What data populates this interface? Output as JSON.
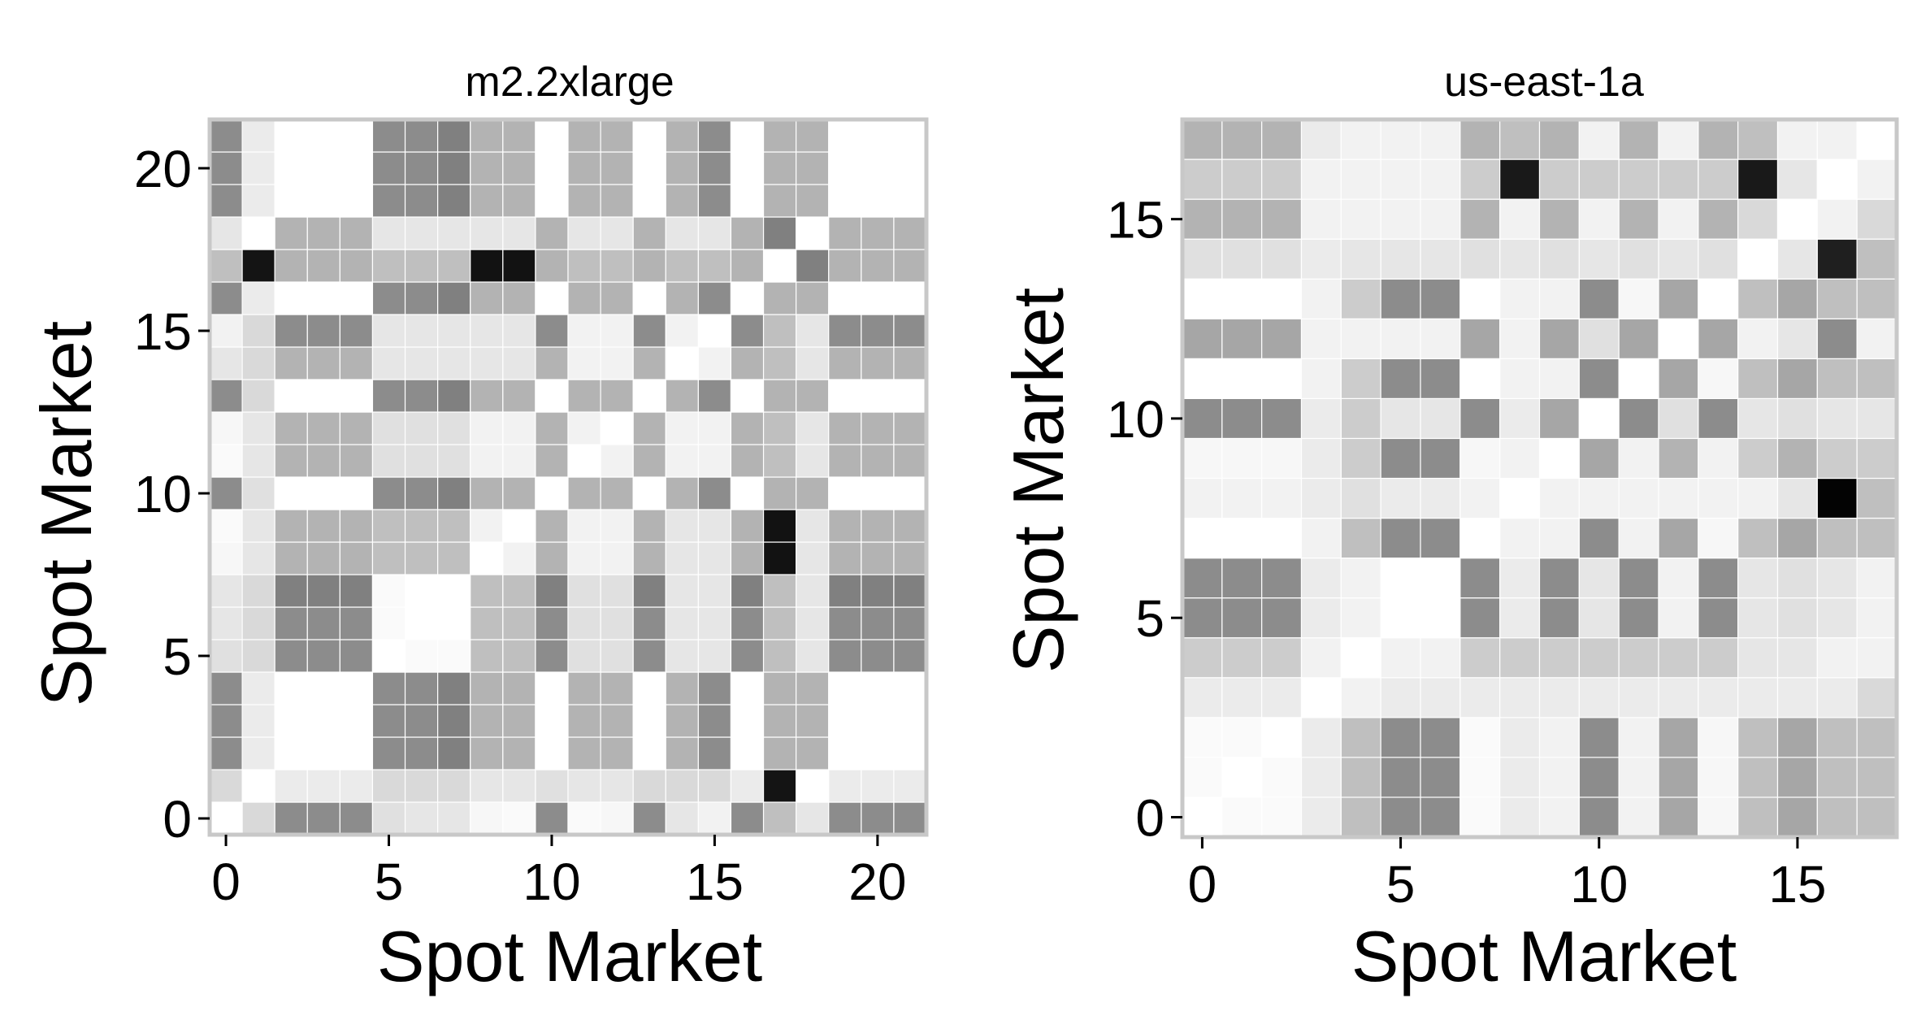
{
  "colors": {
    "background": "#ffffff",
    "panel_border": "#c8c8c8",
    "tile_border": "#ffffff",
    "low": "#ffffff",
    "high": "#000000"
  },
  "chart_data": [
    {
      "type": "heatmap",
      "title": "m2.2xlarge",
      "xlabel": "Spot Market",
      "ylabel": "Spot Market",
      "n": 22,
      "xlim": [
        0,
        21
      ],
      "ylim": [
        0,
        21
      ],
      "xticks": [
        0,
        5,
        10,
        15,
        20
      ],
      "yticks": [
        0,
        5,
        10,
        15,
        20
      ],
      "value_range": [
        0,
        1
      ],
      "grid": false,
      "legend": "none",
      "rows": [
        [
          0.0,
          0.15,
          0.45,
          0.45,
          0.45,
          0.12,
          0.1,
          0.1,
          0.03,
          0.02,
          0.45,
          0.02,
          0.03,
          0.45,
          0.1,
          0.05,
          0.45,
          0.25,
          0.1,
          0.45,
          0.45,
          0.45
        ],
        [
          0.15,
          0.0,
          0.08,
          0.08,
          0.08,
          0.15,
          0.15,
          0.15,
          0.1,
          0.1,
          0.12,
          0.1,
          0.1,
          0.15,
          0.15,
          0.15,
          0.08,
          0.92,
          0.0,
          0.08,
          0.08,
          0.08
        ],
        [
          0.45,
          0.08,
          0.0,
          0.0,
          0.0,
          0.45,
          0.45,
          0.5,
          0.3,
          0.3,
          0.0,
          0.3,
          0.3,
          0.0,
          0.3,
          0.45,
          0.0,
          0.3,
          0.3,
          0.0,
          0.0,
          0.0
        ],
        [
          0.45,
          0.08,
          0.0,
          0.0,
          0.0,
          0.45,
          0.45,
          0.5,
          0.3,
          0.3,
          0.0,
          0.3,
          0.3,
          0.0,
          0.3,
          0.45,
          0.0,
          0.3,
          0.3,
          0.0,
          0.0,
          0.0
        ],
        [
          0.45,
          0.08,
          0.0,
          0.0,
          0.0,
          0.45,
          0.45,
          0.5,
          0.3,
          0.3,
          0.0,
          0.3,
          0.3,
          0.0,
          0.3,
          0.45,
          0.0,
          0.3,
          0.3,
          0.0,
          0.0,
          0.0
        ],
        [
          0.12,
          0.15,
          0.45,
          0.45,
          0.45,
          0.0,
          0.02,
          0.02,
          0.25,
          0.25,
          0.45,
          0.12,
          0.12,
          0.45,
          0.1,
          0.1,
          0.45,
          0.25,
          0.1,
          0.45,
          0.45,
          0.45
        ],
        [
          0.1,
          0.15,
          0.45,
          0.45,
          0.45,
          0.02,
          0.0,
          0.0,
          0.25,
          0.25,
          0.45,
          0.12,
          0.12,
          0.45,
          0.1,
          0.1,
          0.45,
          0.25,
          0.1,
          0.45,
          0.45,
          0.45
        ],
        [
          0.1,
          0.15,
          0.5,
          0.5,
          0.5,
          0.02,
          0.0,
          0.0,
          0.25,
          0.25,
          0.5,
          0.12,
          0.12,
          0.5,
          0.1,
          0.1,
          0.5,
          0.25,
          0.1,
          0.5,
          0.5,
          0.5
        ],
        [
          0.03,
          0.1,
          0.3,
          0.3,
          0.3,
          0.25,
          0.25,
          0.25,
          0.0,
          0.05,
          0.3,
          0.05,
          0.05,
          0.3,
          0.1,
          0.1,
          0.3,
          0.93,
          0.1,
          0.3,
          0.3,
          0.3
        ],
        [
          0.02,
          0.1,
          0.3,
          0.3,
          0.3,
          0.25,
          0.25,
          0.25,
          0.05,
          0.0,
          0.3,
          0.05,
          0.05,
          0.3,
          0.1,
          0.1,
          0.3,
          0.93,
          0.1,
          0.3,
          0.3,
          0.3
        ],
        [
          0.45,
          0.12,
          0.0,
          0.0,
          0.0,
          0.45,
          0.45,
          0.5,
          0.3,
          0.3,
          0.0,
          0.3,
          0.3,
          0.0,
          0.3,
          0.45,
          0.0,
          0.3,
          0.3,
          0.0,
          0.0,
          0.0
        ],
        [
          0.02,
          0.1,
          0.3,
          0.3,
          0.3,
          0.12,
          0.12,
          0.12,
          0.05,
          0.05,
          0.3,
          0.0,
          0.05,
          0.3,
          0.05,
          0.05,
          0.3,
          0.25,
          0.1,
          0.3,
          0.3,
          0.3
        ],
        [
          0.03,
          0.1,
          0.3,
          0.3,
          0.3,
          0.12,
          0.12,
          0.12,
          0.05,
          0.05,
          0.3,
          0.05,
          0.0,
          0.3,
          0.05,
          0.05,
          0.3,
          0.25,
          0.1,
          0.3,
          0.3,
          0.3
        ],
        [
          0.45,
          0.15,
          0.0,
          0.0,
          0.0,
          0.45,
          0.45,
          0.5,
          0.3,
          0.3,
          0.0,
          0.3,
          0.3,
          0.0,
          0.3,
          0.45,
          0.0,
          0.3,
          0.3,
          0.0,
          0.0,
          0.0
        ],
        [
          0.1,
          0.15,
          0.3,
          0.3,
          0.3,
          0.1,
          0.1,
          0.1,
          0.1,
          0.1,
          0.3,
          0.05,
          0.05,
          0.3,
          0.0,
          0.05,
          0.3,
          0.25,
          0.1,
          0.3,
          0.3,
          0.3
        ],
        [
          0.05,
          0.15,
          0.45,
          0.45,
          0.45,
          0.1,
          0.1,
          0.1,
          0.1,
          0.1,
          0.45,
          0.05,
          0.05,
          0.45,
          0.05,
          0.0,
          0.45,
          0.25,
          0.1,
          0.45,
          0.45,
          0.45
        ],
        [
          0.45,
          0.08,
          0.0,
          0.0,
          0.0,
          0.45,
          0.45,
          0.5,
          0.3,
          0.3,
          0.0,
          0.3,
          0.3,
          0.0,
          0.3,
          0.45,
          0.0,
          0.3,
          0.3,
          0.0,
          0.0,
          0.0
        ],
        [
          0.25,
          0.92,
          0.3,
          0.3,
          0.3,
          0.25,
          0.25,
          0.25,
          0.93,
          0.93,
          0.3,
          0.25,
          0.25,
          0.3,
          0.25,
          0.25,
          0.3,
          0.0,
          0.5,
          0.3,
          0.3,
          0.3
        ],
        [
          0.1,
          0.0,
          0.3,
          0.3,
          0.3,
          0.1,
          0.1,
          0.1,
          0.1,
          0.1,
          0.3,
          0.1,
          0.1,
          0.3,
          0.1,
          0.1,
          0.3,
          0.5,
          0.0,
          0.3,
          0.3,
          0.3
        ],
        [
          0.45,
          0.08,
          0.0,
          0.0,
          0.0,
          0.45,
          0.45,
          0.5,
          0.3,
          0.3,
          0.0,
          0.3,
          0.3,
          0.0,
          0.3,
          0.45,
          0.0,
          0.3,
          0.3,
          0.0,
          0.0,
          0.0
        ],
        [
          0.45,
          0.08,
          0.0,
          0.0,
          0.0,
          0.45,
          0.45,
          0.5,
          0.3,
          0.3,
          0.0,
          0.3,
          0.3,
          0.0,
          0.3,
          0.45,
          0.0,
          0.3,
          0.3,
          0.0,
          0.0,
          0.0
        ],
        [
          0.45,
          0.08,
          0.0,
          0.0,
          0.0,
          0.45,
          0.45,
          0.5,
          0.3,
          0.3,
          0.0,
          0.3,
          0.3,
          0.0,
          0.3,
          0.45,
          0.0,
          0.3,
          0.3,
          0.0,
          0.0,
          0.0
        ]
      ]
    },
    {
      "type": "heatmap",
      "title": "us-east-1a",
      "xlabel": "Spot Market",
      "ylabel": "Spot Market",
      "n": 18,
      "xlim": [
        0,
        17
      ],
      "ylim": [
        0,
        17
      ],
      "xticks": [
        0,
        5,
        10,
        15
      ],
      "yticks": [
        0,
        5,
        10,
        15
      ],
      "value_range": [
        0,
        1
      ],
      "grid": false,
      "legend": "none",
      "rows": [
        [
          0.0,
          0.02,
          0.02,
          0.08,
          0.25,
          0.45,
          0.45,
          0.02,
          0.08,
          0.05,
          0.45,
          0.05,
          0.35,
          0.03,
          0.25,
          0.35,
          0.25,
          0.25
        ],
        [
          0.02,
          0.0,
          0.02,
          0.08,
          0.25,
          0.45,
          0.45,
          0.02,
          0.08,
          0.05,
          0.45,
          0.05,
          0.35,
          0.03,
          0.25,
          0.35,
          0.25,
          0.25
        ],
        [
          0.02,
          0.02,
          0.0,
          0.08,
          0.25,
          0.45,
          0.45,
          0.02,
          0.08,
          0.05,
          0.45,
          0.05,
          0.35,
          0.03,
          0.25,
          0.35,
          0.25,
          0.25
        ],
        [
          0.08,
          0.08,
          0.08,
          0.0,
          0.05,
          0.08,
          0.08,
          0.08,
          0.08,
          0.08,
          0.08,
          0.08,
          0.08,
          0.08,
          0.08,
          0.08,
          0.08,
          0.15
        ],
        [
          0.2,
          0.2,
          0.2,
          0.05,
          0.0,
          0.05,
          0.05,
          0.2,
          0.2,
          0.2,
          0.2,
          0.2,
          0.2,
          0.2,
          0.1,
          0.1,
          0.05,
          0.05
        ],
        [
          0.45,
          0.45,
          0.45,
          0.08,
          0.05,
          0.0,
          0.0,
          0.45,
          0.08,
          0.45,
          0.1,
          0.45,
          0.05,
          0.45,
          0.1,
          0.12,
          0.1,
          0.05
        ],
        [
          0.45,
          0.45,
          0.45,
          0.08,
          0.05,
          0.0,
          0.0,
          0.45,
          0.08,
          0.45,
          0.1,
          0.45,
          0.05,
          0.45,
          0.1,
          0.12,
          0.1,
          0.05
        ],
        [
          0.0,
          0.0,
          0.0,
          0.05,
          0.25,
          0.45,
          0.45,
          0.0,
          0.05,
          0.05,
          0.45,
          0.05,
          0.35,
          0.03,
          0.25,
          0.35,
          0.25,
          0.25
        ],
        [
          0.05,
          0.05,
          0.05,
          0.08,
          0.12,
          0.08,
          0.08,
          0.05,
          0.0,
          0.05,
          0.05,
          0.05,
          0.05,
          0.05,
          0.05,
          0.1,
          0.99,
          0.25
        ],
        [
          0.03,
          0.03,
          0.03,
          0.08,
          0.2,
          0.45,
          0.45,
          0.03,
          0.05,
          0.0,
          0.35,
          0.05,
          0.3,
          0.05,
          0.2,
          0.3,
          0.2,
          0.2
        ],
        [
          0.45,
          0.45,
          0.45,
          0.08,
          0.2,
          0.1,
          0.1,
          0.45,
          0.08,
          0.35,
          0.0,
          0.45,
          0.12,
          0.45,
          0.1,
          0.12,
          0.1,
          0.1
        ],
        [
          0.0,
          0.0,
          0.0,
          0.05,
          0.2,
          0.45,
          0.45,
          0.0,
          0.05,
          0.05,
          0.45,
          0.0,
          0.35,
          0.03,
          0.25,
          0.35,
          0.25,
          0.25
        ],
        [
          0.35,
          0.35,
          0.35,
          0.05,
          0.05,
          0.05,
          0.05,
          0.35,
          0.05,
          0.35,
          0.12,
          0.35,
          0.0,
          0.35,
          0.05,
          0.1,
          0.45,
          0.05
        ],
        [
          0.0,
          0.0,
          0.0,
          0.05,
          0.2,
          0.45,
          0.45,
          0.0,
          0.05,
          0.05,
          0.45,
          0.03,
          0.35,
          0.0,
          0.25,
          0.35,
          0.25,
          0.25
        ],
        [
          0.12,
          0.12,
          0.12,
          0.08,
          0.1,
          0.1,
          0.1,
          0.12,
          0.1,
          0.12,
          0.1,
          0.12,
          0.1,
          0.12,
          0.0,
          0.1,
          0.88,
          0.25
        ],
        [
          0.3,
          0.3,
          0.3,
          0.05,
          0.05,
          0.05,
          0.05,
          0.3,
          0.05,
          0.3,
          0.05,
          0.3,
          0.05,
          0.3,
          0.15,
          0.0,
          0.05,
          0.15
        ],
        [
          0.2,
          0.2,
          0.2,
          0.05,
          0.05,
          0.05,
          0.05,
          0.2,
          0.9,
          0.2,
          0.2,
          0.2,
          0.2,
          0.2,
          0.9,
          0.1,
          0.0,
          0.05
        ],
        [
          0.3,
          0.3,
          0.3,
          0.08,
          0.05,
          0.05,
          0.05,
          0.3,
          0.25,
          0.3,
          0.05,
          0.3,
          0.05,
          0.3,
          0.25,
          0.05,
          0.05,
          0.0
        ]
      ]
    }
  ]
}
